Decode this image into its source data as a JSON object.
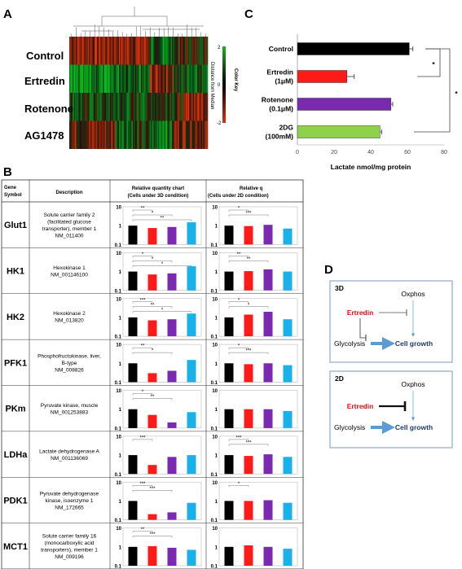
{
  "panel_labels": {
    "a": "A",
    "b": "B",
    "c": "C",
    "d": "D"
  },
  "panel_a": {
    "rows": [
      "Control",
      "Ertredin",
      "Rotenone",
      "AG1478"
    ],
    "color_key_title": "Color Key",
    "color_key_subtitle": "Distance from Median",
    "color_key_ticks": [
      "2",
      "0",
      "-2"
    ],
    "colors": {
      "high": "#e03010",
      "mid": "#000000",
      "low": "#20b020"
    }
  },
  "panel_c": {
    "chart_data": {
      "type": "bar",
      "orientation": "horizontal",
      "categories": [
        "Control",
        "Ertredin (1μM)",
        "Rotenone (0.1μM)",
        "2DG (100mM)"
      ],
      "category_lines": [
        [
          "Control"
        ],
        [
          "Ertredin",
          "(1μM)"
        ],
        [
          "Rotenone",
          "(0.1μM)"
        ],
        [
          "2DG",
          "(100mM)"
        ]
      ],
      "values": [
        61,
        27,
        51,
        45
      ],
      "errors": [
        2,
        4,
        1,
        1
      ],
      "colors": [
        "#000000",
        "#ff1a1a",
        "#7a2ab0",
        "#8ed14b"
      ],
      "xlim": [
        0,
        80
      ],
      "xticks": [
        "0",
        "20",
        "40",
        "60",
        "80"
      ],
      "xlabel": "Lactate nmol/mg  protein",
      "significance": [
        "*",
        "*"
      ]
    }
  },
  "panel_b": {
    "headers": {
      "gene": [
        "Gene",
        "Symbol"
      ],
      "desc": "Description",
      "c3d": [
        "Relative quantity chart",
        "(Cells under 3D condition)"
      ],
      "c2d": [
        "Relative q",
        "(Cells under 2D condition)"
      ]
    },
    "axis_ticks": [
      "10",
      "1",
      "0.1"
    ],
    "bar_colors": [
      "#000000",
      "#ff1a1a",
      "#7a2ab0",
      "#1ab0ea"
    ],
    "chart_data": {
      "type": "bar",
      "scale": "log",
      "ylim": [
        0.1,
        10
      ],
      "groups": [
        "control",
        "ertredin",
        "rotenone",
        "ag1478"
      ],
      "genes": [
        {
          "symbol": "Glut1",
          "desc": [
            "Solute carrier family 2",
            "(facilitated glucose",
            "transporter), member 1",
            "NM_011400"
          ],
          "v3d": [
            1,
            0.75,
            0.85,
            1.5
          ],
          "v2d": [
            1,
            0.95,
            1.1,
            0.7
          ],
          "s3d": [
            "**",
            "*",
            "**"
          ],
          "s2d": [
            "*",
            "***"
          ]
        },
        {
          "symbol": "HK1",
          "desc": [
            "Hexokinase 1",
            "NM_001146100"
          ],
          "v3d": [
            1,
            0.7,
            0.8,
            1.9
          ],
          "v2d": [
            1,
            1.05,
            1.3,
            1.0
          ],
          "s3d": [
            "*",
            "*",
            "*"
          ],
          "s2d": [
            "**",
            "**"
          ]
        },
        {
          "symbol": "HK2",
          "desc": [
            "Hexokinase 2",
            "NM_013820"
          ],
          "v3d": [
            1,
            0.7,
            0.8,
            1.6
          ],
          "v2d": [
            1,
            1.4,
            2.0,
            0.8
          ],
          "s3d": [
            "***",
            "**",
            "*"
          ],
          "s2d": [
            "*",
            "*"
          ]
        },
        {
          "symbol": "PFK1",
          "desc": [
            "Phosphofructokinase, liver,",
            "B-type",
            "NM_008826"
          ],
          "v3d": [
            1,
            0.3,
            0.4,
            1.5
          ],
          "v2d": [
            1,
            0.9,
            1.0,
            0.8
          ],
          "s3d": [
            "**",
            "*"
          ],
          "s2d": [
            "*",
            "***"
          ]
        },
        {
          "symbol": "PKm",
          "desc": [
            "Pyruvate kinase, muscle",
            "NM_001253883"
          ],
          "v3d": [
            1,
            0.5,
            0.2,
            0.7
          ],
          "v2d": [
            1,
            1.0,
            1.0,
            0.8
          ],
          "s3d": [
            "*",
            "**"
          ],
          "s2d": []
        },
        {
          "symbol": "LDHa",
          "desc": [
            "Lactate dehydrogenase A",
            "NM_001136069"
          ],
          "v3d": [
            1,
            0.3,
            0.8,
            1.0
          ],
          "v2d": [
            1,
            0.9,
            1.1,
            0.8
          ],
          "s3d": [
            "***"
          ],
          "s2d": [
            "***",
            "***"
          ]
        },
        {
          "symbol": "PDK1",
          "desc": [
            "Pyruvate dehydrogenase",
            "kinase, isoenzyme 1",
            "NM_172665"
          ],
          "v3d": [
            1,
            0.2,
            0.25,
            0.8
          ],
          "v2d": [
            1,
            1.0,
            1.1,
            0.8
          ],
          "s3d": [
            "***",
            "***"
          ],
          "s2d": [
            "*"
          ]
        },
        {
          "symbol": "MCT1",
          "desc": [
            "Solute carrier family 16",
            "(monocarboxylic acid",
            "transporters), member 1",
            "NM_009196"
          ],
          "v3d": [
            1,
            1.1,
            0.9,
            0.7
          ],
          "v2d": [
            1,
            1.2,
            1.0,
            0.8
          ],
          "s3d": [
            "**",
            "***"
          ],
          "s2d": []
        }
      ]
    }
  },
  "panel_d": {
    "boxes": [
      {
        "title": "3D",
        "oxphos": "Oxphos",
        "ertredin": "Ertredin",
        "glycolysis": "Glycolysis",
        "growth": "Cell growth"
      },
      {
        "title": "2D",
        "oxphos": "Oxphos",
        "ertredin": "Ertredin",
        "glycolysis": "Glycolysis",
        "growth": "Cell growth"
      }
    ],
    "colors": {
      "ertredin": "#e01010",
      "arrow": "#5b9bd5",
      "growth": "#1f3a68"
    }
  }
}
